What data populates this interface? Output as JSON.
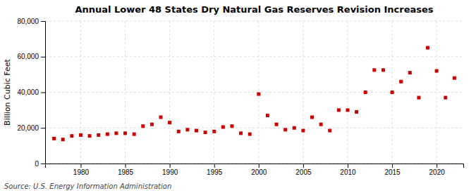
{
  "chart_data": {
    "type": "scatter",
    "title": "Annual Lower 48 States Dry Natural Gas Reserves Revision Increases",
    "ylabel": "Billion Cubic Feet",
    "annotations": [
      "Source: U.S. Energy Information Administration"
    ],
    "x": [
      1977,
      1978,
      1979,
      1980,
      1981,
      1982,
      1983,
      1984,
      1985,
      1986,
      1987,
      1988,
      1989,
      1990,
      1991,
      1992,
      1993,
      1994,
      1995,
      1996,
      1997,
      1998,
      1999,
      2000,
      2001,
      2002,
      2003,
      2004,
      2005,
      2006,
      2007,
      2008,
      2009,
      2010,
      2011,
      2012,
      2013,
      2014,
      2015,
      2016,
      2017,
      2018,
      2019,
      2020,
      2021,
      2022
    ],
    "values": [
      14000,
      13500,
      15500,
      16000,
      15500,
      16000,
      16500,
      17000,
      17000,
      16500,
      21000,
      22000,
      26000,
      23000,
      18000,
      19000,
      18500,
      17500,
      18000,
      20500,
      21000,
      17000,
      16500,
      39000,
      27000,
      22000,
      19000,
      20000,
      18500,
      26000,
      22000,
      18500,
      30000,
      30000,
      29000,
      40000,
      52500,
      52500,
      40000,
      46000,
      51000,
      37000,
      65000,
      52000,
      37000,
      48000
    ],
    "color": "#cc0000",
    "marker": "square",
    "xlim": [
      1976,
      2023
    ],
    "ylim": [
      0,
      80000
    ],
    "xticks": [
      1980,
      1985,
      1990,
      1995,
      2000,
      2005,
      2010,
      2015,
      2020
    ],
    "yticks": [
      0,
      {
        "value": 20000,
        "label": "20,000"
      },
      {
        "value": 40000,
        "label": "40,000"
      },
      {
        "value": 60000,
        "label": "60,000"
      },
      {
        "value": 80000,
        "label": "80,000"
      }
    ],
    "grid": true
  }
}
